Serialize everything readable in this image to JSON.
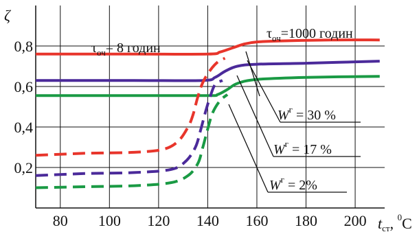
{
  "chart_data": {
    "type": "line",
    "ylabel": "ζ",
    "xlabel_main": "t",
    "xlabel_sub": "ст",
    "xlabel_unit": ", ",
    "xlabel_unit_sup": "0",
    "xlabel_unit_main": "C",
    "xlim": [
      70,
      212
    ],
    "ylim": [
      0,
      1.0
    ],
    "grid": true,
    "x_ticks": [
      80,
      100,
      120,
      140,
      160,
      180,
      200
    ],
    "y_ticks": [
      0.2,
      0.4,
      0.6,
      0.8
    ],
    "y_tick_labels": [
      "0,2",
      "0,4",
      "0,6",
      "0,8"
    ],
    "series": [
      {
        "name": "τоч = 1000 годин, Wг = 30 %",
        "color": "#e8352b",
        "dash": false,
        "x": [
          70,
          110,
          140,
          145,
          150,
          155,
          160,
          170,
          190,
          210
        ],
        "y": [
          0.76,
          0.76,
          0.76,
          0.77,
          0.79,
          0.81,
          0.82,
          0.825,
          0.83,
          0.83
        ]
      },
      {
        "name": "τоч = 1000 годин, Wг = 17 %",
        "color": "#4b2a9a",
        "dash": false,
        "x": [
          70,
          110,
          138,
          143,
          147,
          152,
          160,
          180,
          210
        ],
        "y": [
          0.63,
          0.63,
          0.63,
          0.645,
          0.675,
          0.7,
          0.71,
          0.715,
          0.725
        ]
      },
      {
        "name": "τоч = 1000 годин, Wг = 2%",
        "color": "#1a9a44",
        "dash": false,
        "x": [
          70,
          110,
          140,
          144,
          148,
          152,
          160,
          180,
          210
        ],
        "y": [
          0.555,
          0.555,
          0.555,
          0.56,
          0.585,
          0.615,
          0.635,
          0.645,
          0.65
        ]
      },
      {
        "name": "τоч = 8 годин, Wг = 30 %",
        "color": "#e8352b",
        "dash": true,
        "x": [
          70,
          90,
          110,
          122,
          128,
          132,
          134,
          136,
          138,
          141,
          144,
          147
        ],
        "y": [
          0.26,
          0.27,
          0.275,
          0.29,
          0.33,
          0.4,
          0.46,
          0.55,
          0.62,
          0.68,
          0.72,
          0.74
        ]
      },
      {
        "name": "τоч = 8 годин, Wг = 17 %",
        "color": "#4b2a9a",
        "dash": true,
        "x": [
          70,
          90,
          110,
          125,
          131,
          135,
          137,
          139,
          141,
          143,
          146
        ],
        "y": [
          0.16,
          0.17,
          0.175,
          0.19,
          0.23,
          0.3,
          0.38,
          0.47,
          0.55,
          0.61,
          0.63
        ]
      },
      {
        "name": "τоч = 8 годин, Wг = 2%",
        "color": "#1a9a44",
        "dash": true,
        "x": [
          70,
          90,
          110,
          125,
          132,
          136,
          138,
          140,
          142,
          145,
          148
        ],
        "y": [
          0.1,
          0.105,
          0.11,
          0.125,
          0.16,
          0.22,
          0.3,
          0.39,
          0.47,
          0.53,
          0.56
        ]
      }
    ],
    "annotations": {
      "tau8": {
        "pre": "τ",
        "sub": "оч",
        "post": "= 8 годин"
      },
      "tau1000": {
        "pre": "τ",
        "sub": "оч",
        "post": "=1000 годин"
      },
      "w30": {
        "pre": "W",
        "sup": "г",
        "post": " = 30 %"
      },
      "w17": {
        "pre": "W",
        "sup": "г",
        "post": " = 17 %"
      },
      "w2": {
        "pre": "W",
        "sup": "г",
        "post": " = 2%"
      }
    }
  }
}
